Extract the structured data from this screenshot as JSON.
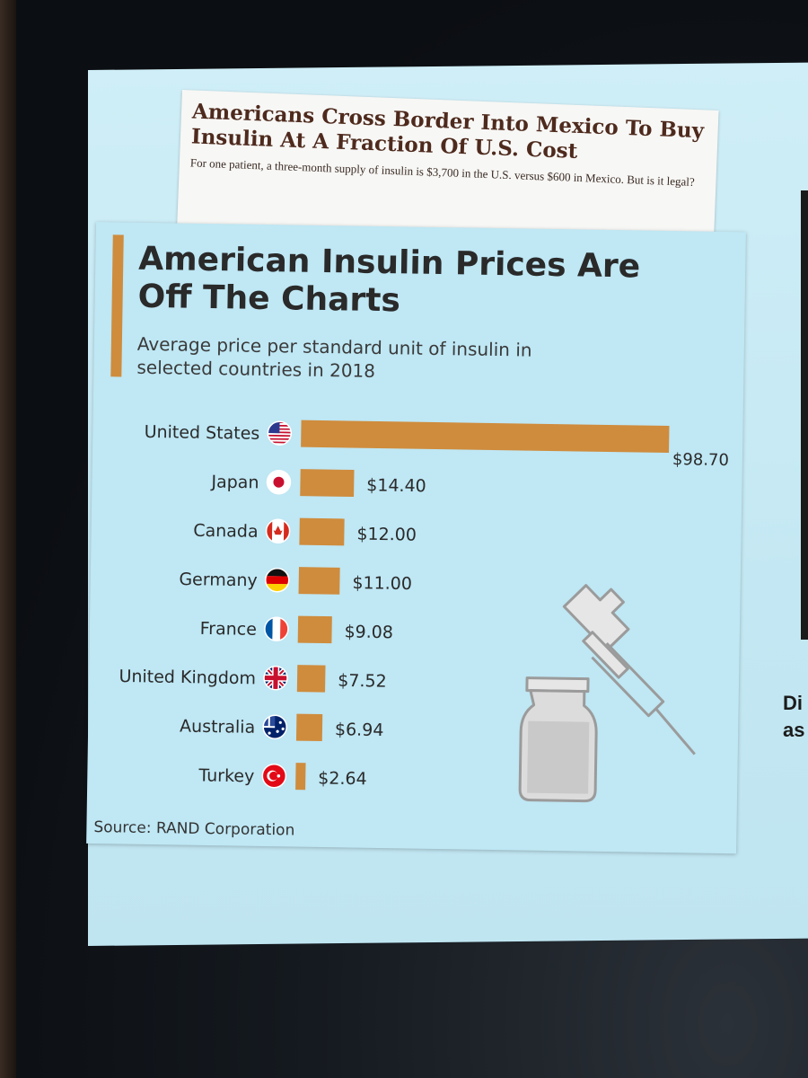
{
  "headline": {
    "title": "Americans Cross Border Into Mexico To Buy Insulin At A Fraction Of U.S. Cost",
    "subtitle": "For one patient, a three-month supply of insulin is $3,700 in the U.S. versus $600 in Mexico. But is it legal?"
  },
  "right_fragment": {
    "line1": "Di",
    "line2": "as"
  },
  "colors": {
    "bar": "#cf8c3d",
    "text": "#2a2a2a",
    "background": "#bfe7f4"
  },
  "chart_data": {
    "type": "bar",
    "orientation": "horizontal",
    "title": "American Insulin Prices Are Off The Charts",
    "subtitle": "Average price per standard unit of insulin in selected countries in 2018",
    "categories": [
      "United States",
      "Japan",
      "Canada",
      "Germany",
      "France",
      "United Kingdom",
      "Australia",
      "Turkey"
    ],
    "values": [
      98.7,
      14.4,
      12.0,
      11.0,
      9.08,
      7.52,
      6.94,
      2.64
    ],
    "value_labels": [
      "$98.70",
      "$14.40",
      "$12.00",
      "$11.00",
      "$9.08",
      "$7.52",
      "$6.94",
      "$2.64"
    ],
    "flags": [
      "us-flag-icon",
      "japan-flag-icon",
      "canada-flag-icon",
      "germany-flag-icon",
      "france-flag-icon",
      "uk-flag-icon",
      "australia-flag-icon",
      "turkey-flag-icon"
    ],
    "source": "Source: RAND Corporation",
    "xlim": [
      0,
      98.7
    ],
    "grid": false,
    "legend": "none"
  }
}
